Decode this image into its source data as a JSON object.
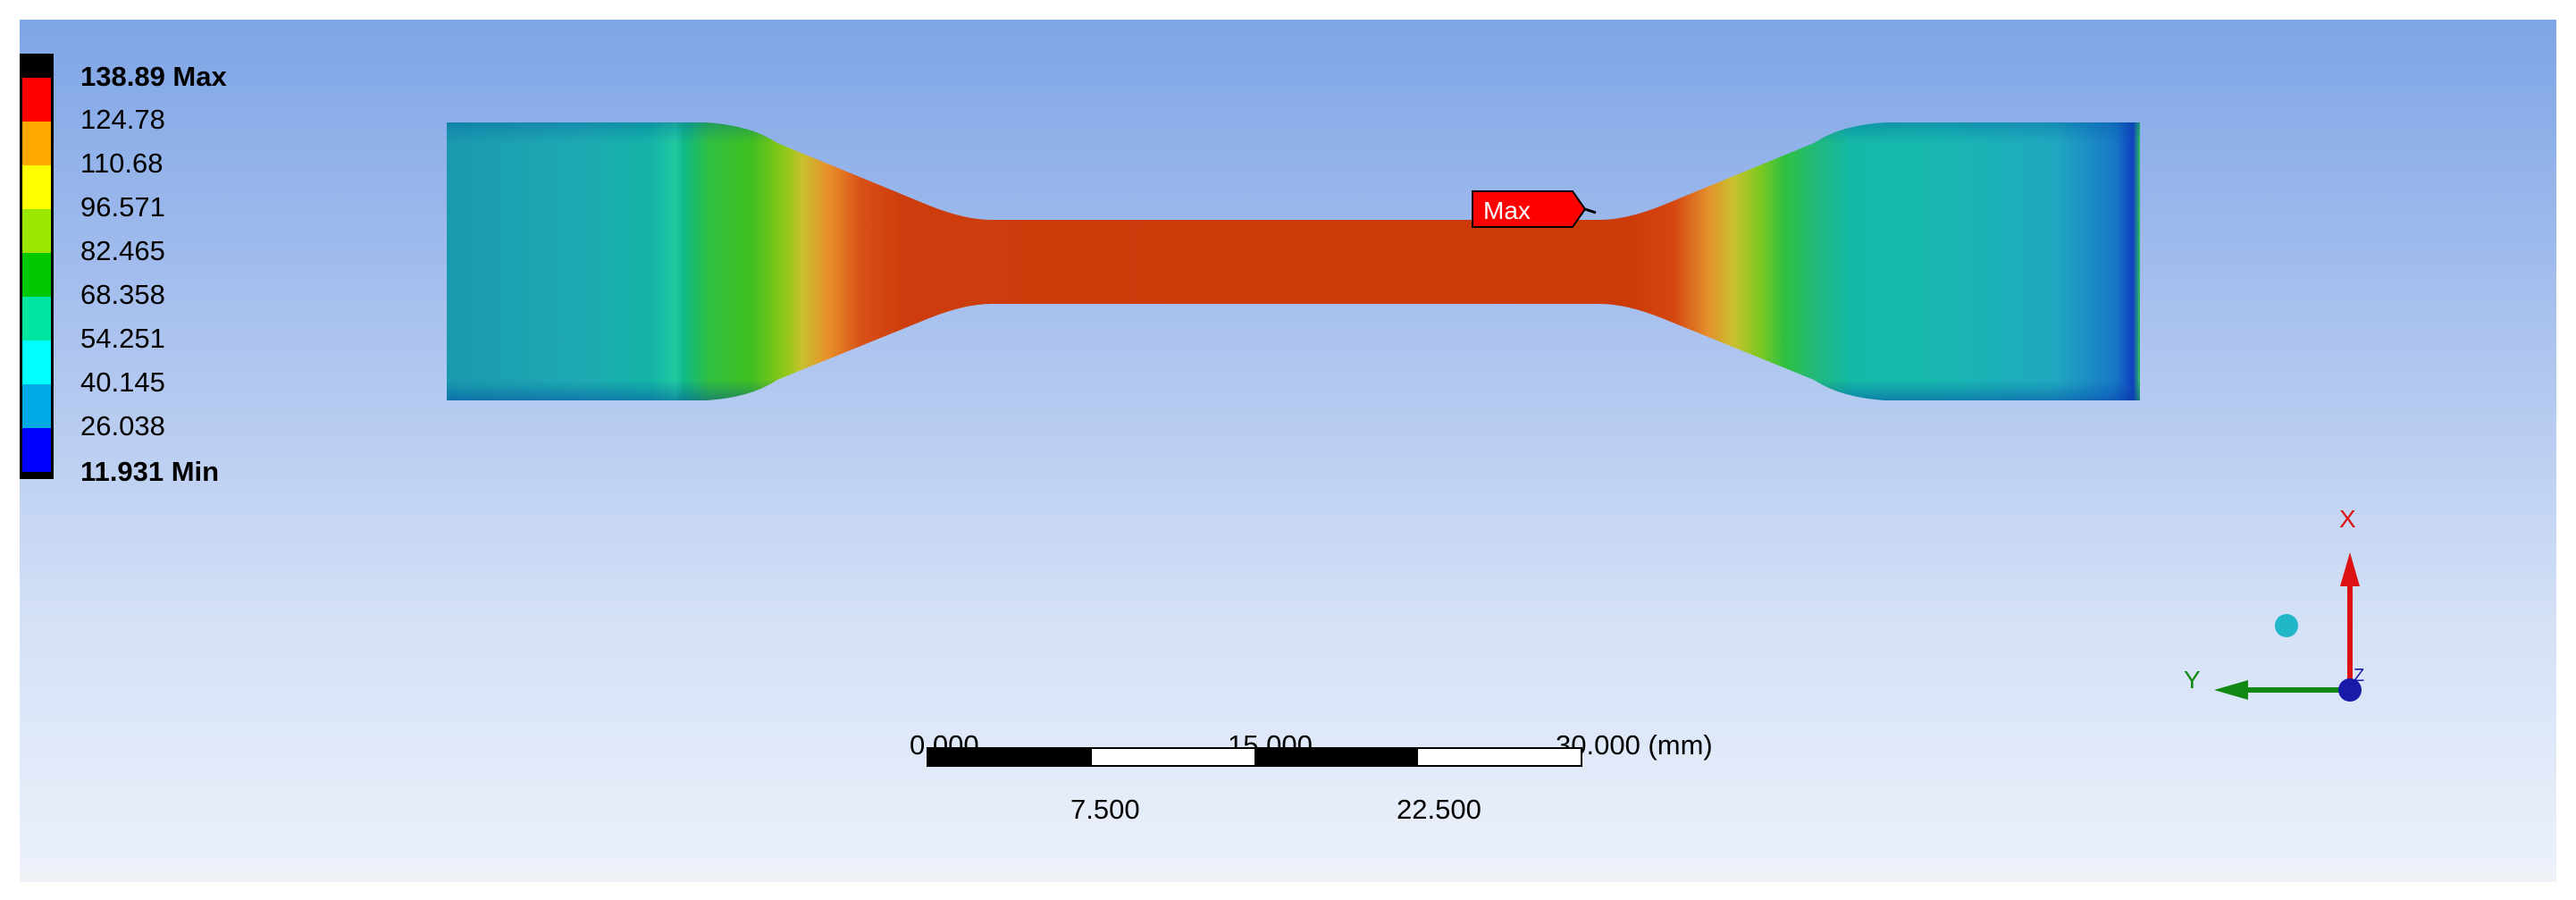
{
  "legend": {
    "max_label": "138.89 Max",
    "min_label": "11.931 Min",
    "levels": [
      "124.78",
      "110.68",
      "96.571",
      "82.465",
      "68.358",
      "54.251",
      "40.145",
      "26.038"
    ],
    "colors": [
      "#d00000",
      "#ff0000",
      "#ffa500",
      "#ffff00",
      "#99e600",
      "#00c800",
      "#00e6a0",
      "#00ffff",
      "#00a0e6",
      "#0000ff",
      "#000000"
    ]
  },
  "probe": {
    "label": "Max"
  },
  "scale": {
    "top_labels": [
      "0.000",
      "15.000",
      "30.000 (mm)"
    ],
    "bottom_labels": [
      "7.500",
      "22.500"
    ]
  },
  "triad": {
    "x_label": "X",
    "y_label": "Y",
    "z_label": "Z",
    "colors": {
      "x": "#dd1111",
      "y": "#118811",
      "z": "#1a1aa8",
      "iso": "#20b8c8"
    }
  }
}
